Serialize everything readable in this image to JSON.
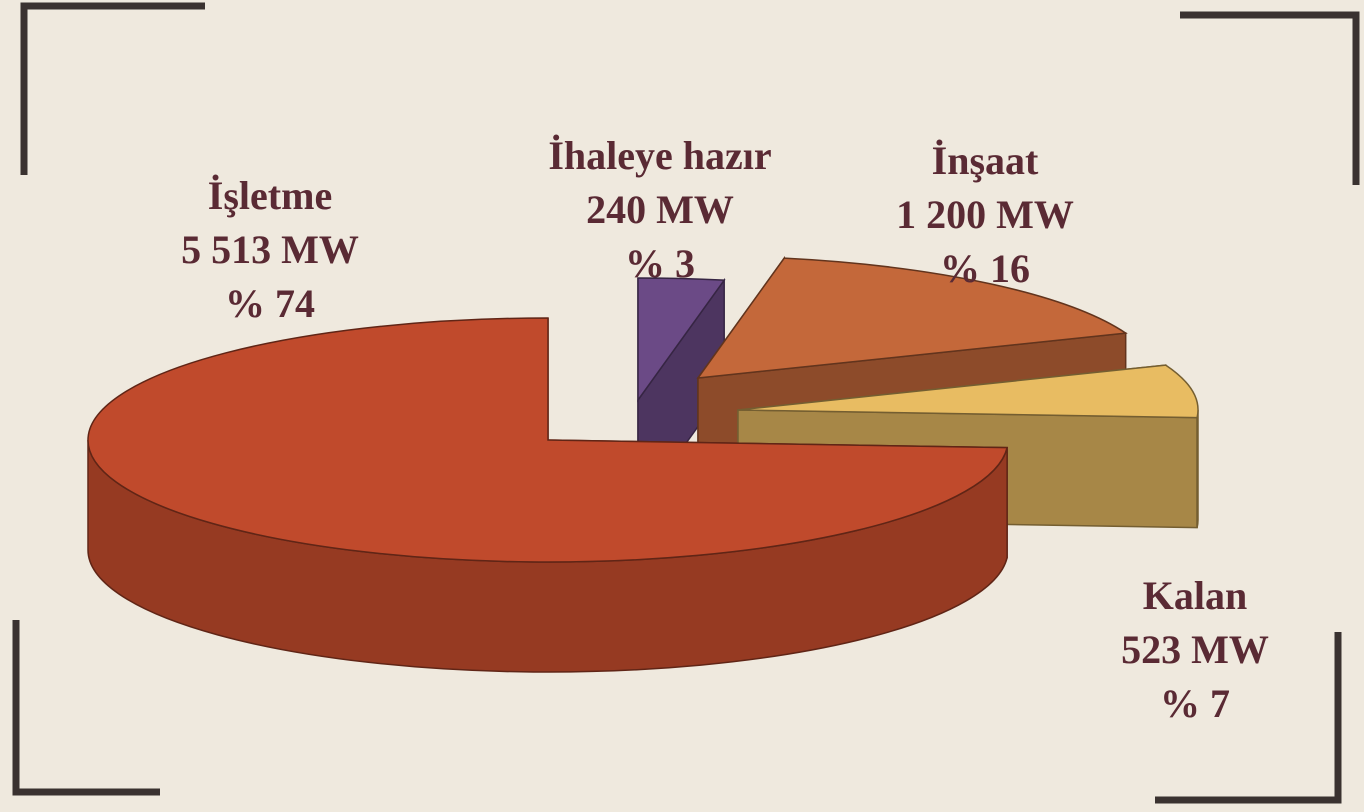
{
  "chart_data": {
    "type": "pie3d",
    "categories": [
      "İşletme",
      "İhaleye hazır",
      "İnşaat",
      "Kalan"
    ],
    "values": [
      74,
      3,
      16,
      7
    ],
    "value_labels": [
      "% 74",
      "% 3",
      "% 16",
      "% 7"
    ],
    "mw_values": [
      5513,
      240,
      1200,
      523
    ],
    "mw_labels": [
      "5 513 MW",
      "240 MW",
      "1 200 MW",
      "523 MW"
    ],
    "colors": [
      "#c04a2c",
      "#6b4a86",
      "#c4683a",
      "#e8bc62"
    ]
  }
}
